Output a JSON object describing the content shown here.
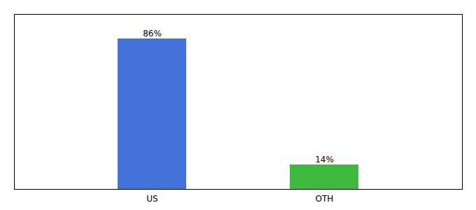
{
  "chart_data": {
    "type": "bar",
    "categories": [
      "US",
      "OTH"
    ],
    "values": [
      86,
      14
    ],
    "value_labels": [
      "86%",
      "14%"
    ],
    "colors": [
      "#4472db",
      "#3dba3d"
    ],
    "ylim": [
      0,
      100
    ],
    "data_labels": true,
    "tick_labels": "x"
  }
}
